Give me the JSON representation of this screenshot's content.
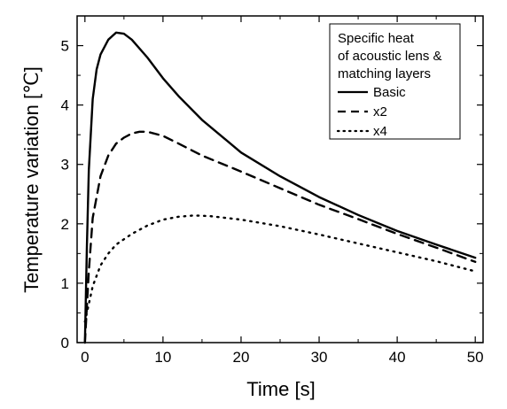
{
  "chart_data": {
    "type": "line",
    "title": "",
    "xlabel": "Time [s]",
    "ylabel": "Temperature variation [℃]",
    "xlim": [
      -1,
      51
    ],
    "ylim": [
      0,
      5.5
    ],
    "x_ticks": [
      "0",
      "10",
      "20",
      "30",
      "40",
      "50"
    ],
    "y_ticks": [
      "0",
      "1",
      "2",
      "3",
      "4",
      "5"
    ],
    "grid": false,
    "legend": {
      "placement": "top-right",
      "title_lines": [
        "Specific heat",
        "of acoustic lens &",
        "matching layers"
      ]
    },
    "series": [
      {
        "name": "Basic",
        "style": "solid",
        "color": "#000000",
        "x": [
          0,
          0.25,
          0.5,
          1,
          1.5,
          2,
          3,
          4,
          5,
          6,
          8,
          10,
          12,
          15,
          20,
          25,
          30,
          35,
          40,
          45,
          50
        ],
        "y": [
          0.0,
          1.6,
          2.9,
          4.1,
          4.6,
          4.85,
          5.1,
          5.22,
          5.2,
          5.1,
          4.8,
          4.45,
          4.15,
          3.75,
          3.2,
          2.8,
          2.45,
          2.15,
          1.88,
          1.65,
          1.43
        ]
      },
      {
        "name": "x2",
        "style": "dashed",
        "color": "#000000",
        "x": [
          0,
          0.5,
          1,
          2,
          3,
          4,
          5,
          6,
          7,
          8,
          10,
          12,
          15,
          20,
          25,
          30,
          35,
          40,
          45,
          50
        ],
        "y": [
          0.0,
          1.2,
          2.1,
          2.8,
          3.15,
          3.35,
          3.45,
          3.52,
          3.55,
          3.55,
          3.48,
          3.35,
          3.15,
          2.88,
          2.6,
          2.32,
          2.08,
          1.83,
          1.6,
          1.36
        ]
      },
      {
        "name": "x4",
        "style": "dotted",
        "color": "#000000",
        "x": [
          0,
          0.5,
          1,
          2,
          3,
          4,
          6,
          8,
          10,
          12,
          14,
          16,
          20,
          25,
          30,
          35,
          40,
          45,
          50
        ],
        "y": [
          0.35,
          0.65,
          0.95,
          1.3,
          1.5,
          1.65,
          1.83,
          1.97,
          2.07,
          2.12,
          2.14,
          2.13,
          2.07,
          1.96,
          1.82,
          1.67,
          1.52,
          1.37,
          1.2
        ]
      }
    ]
  }
}
